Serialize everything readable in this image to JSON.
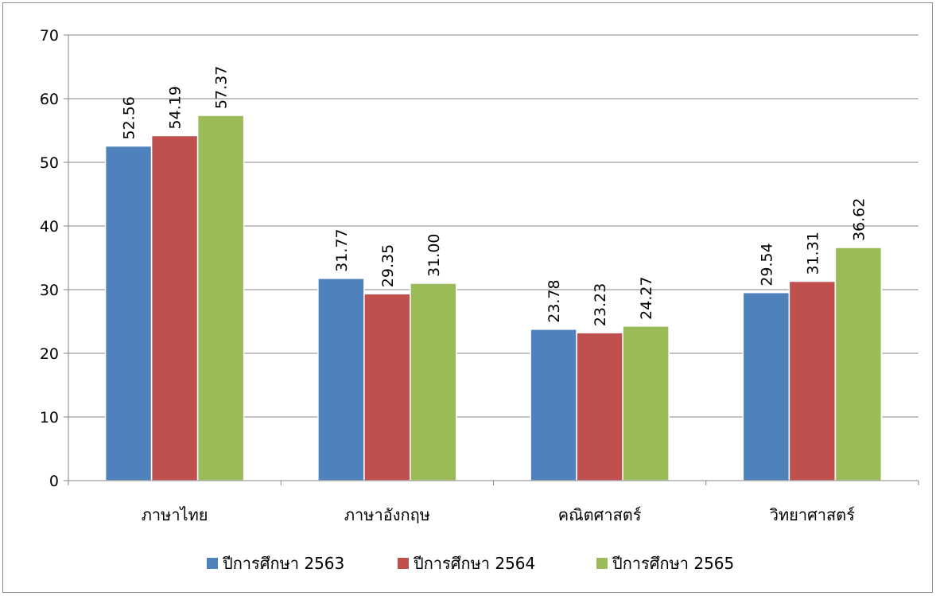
{
  "chart_data": {
    "type": "bar",
    "title": "",
    "xlabel": "",
    "ylabel": "",
    "ylim": [
      0,
      70
    ],
    "ytick_step": 10,
    "yticks": [
      "0",
      "10",
      "20",
      "30",
      "40",
      "50",
      "60",
      "70"
    ],
    "grid": true,
    "legend_position": "bottom",
    "categories": [
      "ภาษาไทย",
      "ภาษาอังกฤษ",
      "คณิตศาสตร์",
      "วิทยาศาสตร์"
    ],
    "series": [
      {
        "name": "ปีการศึกษา 2563",
        "color": "#4f81bd",
        "values": [
          52.56,
          31.77,
          23.78,
          29.54
        ],
        "labels": [
          "52.56",
          "31.77",
          "23.78",
          "29.54"
        ]
      },
      {
        "name": "ปีการศึกษา 2564",
        "color": "#c0504d",
        "values": [
          54.19,
          29.35,
          23.23,
          31.31
        ],
        "labels": [
          "54.19",
          "29.35",
          "23.23",
          "31.31"
        ]
      },
      {
        "name": "ปีการศึกษา 2565",
        "color": "#9bbb59",
        "values": [
          57.37,
          31.0,
          24.27,
          36.62
        ],
        "labels": [
          "57.37",
          "31.00",
          "24.27",
          "36.62"
        ]
      }
    ]
  }
}
